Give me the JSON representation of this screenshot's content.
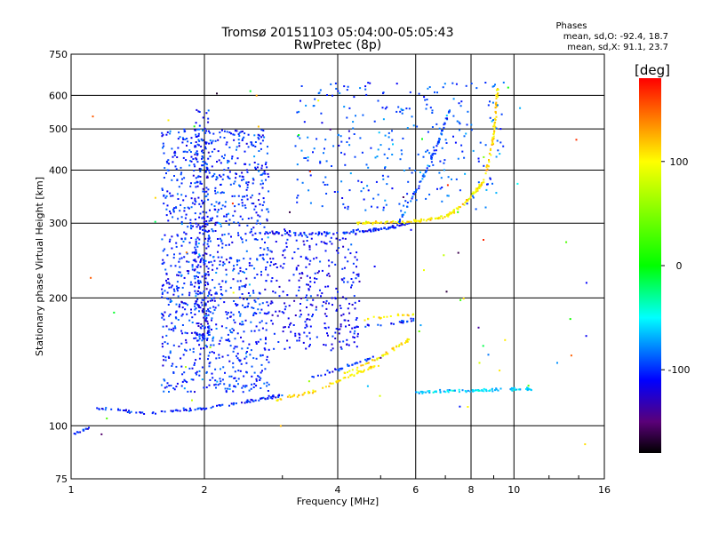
{
  "chart_data": {
    "type": "scatter",
    "title": "Tromsø 20151103 05:04:00-05:05:43",
    "subtitle": "RwPretec (8p)",
    "xlabel": "Frequency [MHz]",
    "ylabel": "Stationary phase Virtual Height [km]",
    "x_scale": "log",
    "y_scale": "log",
    "xlim": [
      1,
      16
    ],
    "ylim": [
      75,
      750
    ],
    "x_ticks": [
      1,
      2,
      4,
      6,
      8,
      10,
      16
    ],
    "x_tick_labels": [
      "1",
      "2",
      "4",
      "6",
      "8",
      "10",
      "16"
    ],
    "x_grid": [
      2,
      4,
      6,
      8,
      10
    ],
    "y_ticks": [
      75,
      100,
      200,
      300,
      400,
      500,
      600,
      750
    ],
    "y_tick_labels": [
      "75",
      "100",
      "200",
      "300",
      "400",
      "500",
      "600",
      "750"
    ],
    "y_grid": [
      100,
      200,
      300,
      400,
      500,
      600
    ],
    "grid": true,
    "stats": {
      "heading": "Phases",
      "line_o": "mean, sd,O: -92.4, 18.7",
      "line_x": "mean, sd,X:  91.1, 23.7"
    },
    "colorbar": {
      "label": "[deg]",
      "range": [
        -180,
        180
      ],
      "ticks": [
        100,
        0,
        -100
      ],
      "tick_labels": [
        "100",
        "0",
        "-100"
      ],
      "colormap": "rainbow",
      "stops": [
        {
          "v": -180,
          "c": "#000000"
        },
        {
          "v": -150,
          "c": "#5a0078"
        },
        {
          "v": -110,
          "c": "#0000ff"
        },
        {
          "v": -50,
          "c": "#00ffff"
        },
        {
          "v": 0,
          "c": "#00ff00"
        },
        {
          "v": 100,
          "c": "#ffff00"
        },
        {
          "v": 140,
          "c": "#ff8000"
        },
        {
          "v": 180,
          "c": "#ff0000"
        }
      ]
    },
    "structures": [
      {
        "feature": "E-region trace",
        "x": [
          1.0,
          1.1
        ],
        "y": [
          95,
          99
        ],
        "phase": -105,
        "count": 14
      },
      {
        "feature": "F1 O-mode trace",
        "x": [
          1.15,
          1.5,
          2.0,
          2.5,
          3.0
        ],
        "y": [
          110,
          107,
          110,
          114,
          118
        ],
        "phase": -105,
        "count": 110
      },
      {
        "feature": "F1 X-mode trace",
        "x": [
          2.9,
          3.6,
          4.2,
          5.0
        ],
        "y": [
          115,
          121,
          130,
          140
        ],
        "phase": 110,
        "count": 70
      },
      {
        "feature": "F1 X-mode upper",
        "x": [
          4.1,
          5.0,
          5.8
        ],
        "y": [
          132,
          145,
          160
        ],
        "phase": 105,
        "count": 45
      },
      {
        "feature": "F1 O-mode upper",
        "x": [
          3.5,
          4.2,
          4.8
        ],
        "y": [
          130,
          138,
          145
        ],
        "phase": -100,
        "count": 35
      },
      {
        "feature": "F1 cusp O",
        "x": [
          4.3,
          5.4,
          6.0
        ],
        "y": [
          170,
          175,
          178
        ],
        "phase": -105,
        "count": 30
      },
      {
        "feature": "F1 cusp X",
        "x": [
          4.6,
          5.3,
          6.1
        ],
        "y": [
          178,
          181,
          183
        ],
        "phase": 110,
        "count": 20
      },
      {
        "feature": "F2 O-mode trace",
        "x": [
          2.6,
          3.5,
          4.4,
          5.2,
          5.8
        ],
        "y": [
          285,
          283,
          285,
          292,
          300
        ],
        "phase": -105,
        "count": 110
      },
      {
        "feature": "F2 X-mode trace",
        "x": [
          4.4,
          5.8,
          7.0,
          7.8,
          8.6
        ],
        "y": [
          300,
          302,
          310,
          335,
          380
        ],
        "phase": 105,
        "count": 140
      },
      {
        "feature": "F2 X-mode upper",
        "x": [
          8.6,
          9.0,
          9.2
        ],
        "y": [
          380,
          480,
          630
        ],
        "phase": 115,
        "count": 60
      },
      {
        "feature": "F2 O-mode upper",
        "x": [
          5.5,
          6.5,
          7.2
        ],
        "y": [
          300,
          420,
          560
        ],
        "phase": -90,
        "count": 70
      },
      {
        "feature": "Spread F cloud",
        "x": [
          1.6,
          2.8
        ],
        "y": [
          120,
          500
        ],
        "phase": -100,
        "count": 1100
      },
      {
        "feature": "Spread F column",
        "x": [
          1.9,
          2.05
        ],
        "y": [
          160,
          560
        ],
        "phase": -110,
        "count": 220
      },
      {
        "feature": "Spread F tail",
        "x": [
          2.8,
          4.5
        ],
        "y": [
          150,
          290
        ],
        "phase": -110,
        "count": 300
      },
      {
        "feature": "Sporadic E at 120 km",
        "x": [
          6.0,
          11.0
        ],
        "y": [
          120,
          122
        ],
        "phase": -60,
        "count": 90
      },
      {
        "feature": "Scattered high echoes",
        "x": [
          3.2,
          9.5
        ],
        "y": [
          320,
          650
        ],
        "phase": -90,
        "count": 300
      },
      {
        "feature": "Isolated noise",
        "x": [
          1.05,
          15
        ],
        "y": [
          90,
          650
        ],
        "phase": 0,
        "count": 70
      }
    ]
  }
}
